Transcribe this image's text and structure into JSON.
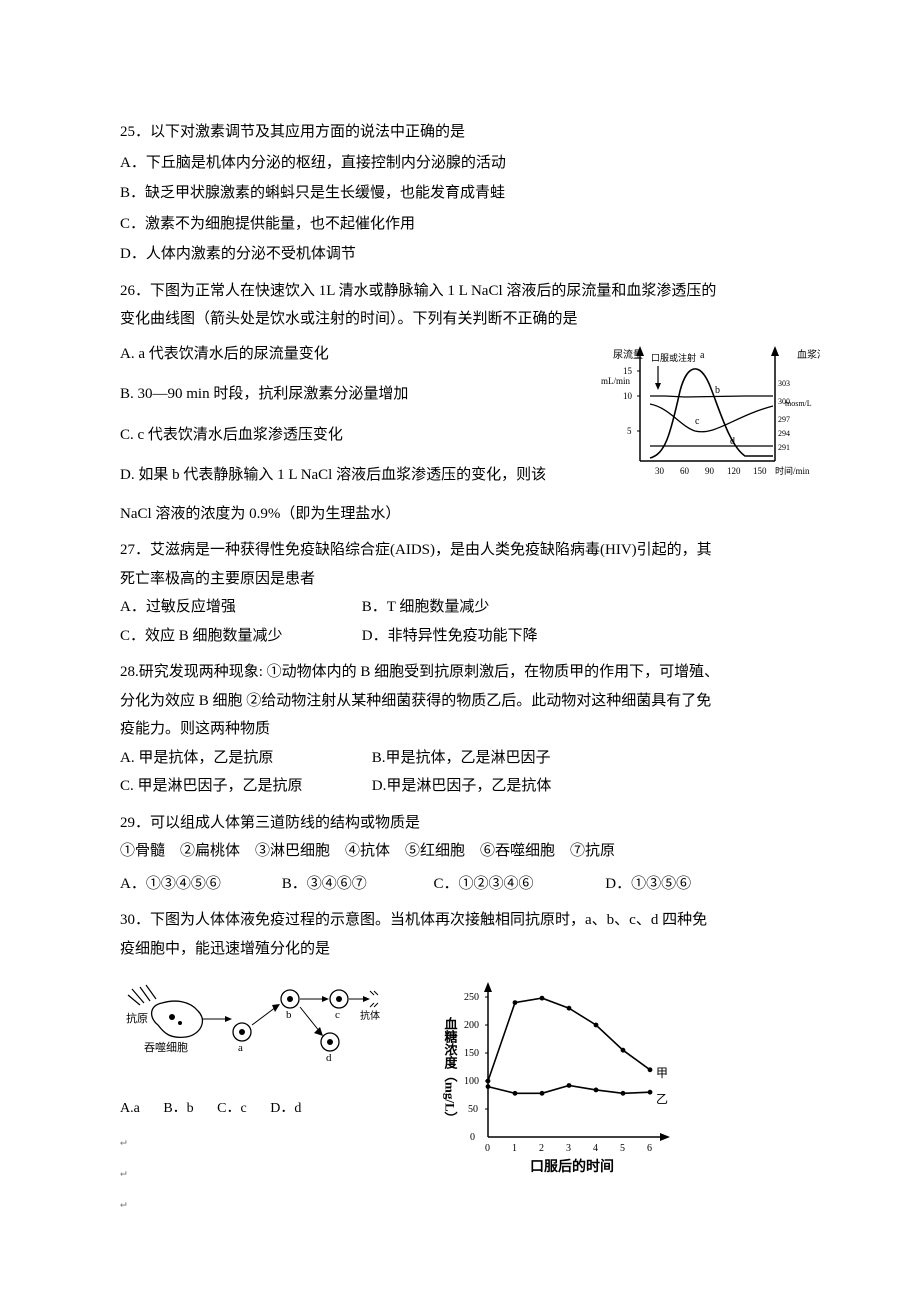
{
  "q25": {
    "stem": "25．以下对激素调节及其应用方面的说法中正确的是",
    "A": "A．下丘脑是机体内分泌的枢纽，直接控制内分泌腺的活动",
    "B": "B．缺乏甲状腺激素的蝌蚪只是生长缓慢，也能发育成青蛙",
    "C": "C．激素不为细胞提供能量，也不起催化作用",
    "D": "D．人体内激素的分泌不受机体调节"
  },
  "q26": {
    "stem1": "26．下图为正常人在快速饮入 1L 清水或静脉输入 1 L NaCl 溶液后的尿流量和血浆渗透压的",
    "stem2": "变化曲线图（箭头处是饮水或注射的时间）。下列有关判断不正确的是",
    "A": "A. a 代表饮清水后的尿流量变化",
    "B": "B. 30—90 min 时段，抗利尿激素分泌量增加",
    "C": "C. c 代表饮清水后血浆渗透压变化",
    "D1": "D. 如果 b 代表静脉输入 1 L NaCl 溶液后血浆渗透压的变化，则该",
    "D2": "NaCl 溶液的浓度为 0.9%（即为生理盐水）",
    "chart": {
      "left_axis_label": "尿流量",
      "left_axis_unit": "mL/min",
      "left_ticks": [
        "15",
        "10",
        "5"
      ],
      "right_axis_label": "血浆渗透压",
      "right_axis_unit": "mosm/L",
      "right_ticks": [
        "303",
        "300",
        "297",
        "294",
        "291"
      ],
      "x_ticks": [
        "30",
        "60",
        "90",
        "120",
        "150"
      ],
      "x_label": "时间/min",
      "inject_label": "口服或注射",
      "series": [
        "a",
        "b",
        "c",
        "d"
      ],
      "strokes": {
        "axis": "#000000",
        "curve": "#000000"
      },
      "background": "#ffffff"
    }
  },
  "q27": {
    "stem1": "27．艾滋病是一种获得性免疫缺陷综合症(AIDS)，是由人类免疫缺陷病毒(HIV)引起的，其",
    "stem2": "死亡率极高的主要原因是患者",
    "A": "A．过敏反应增强",
    "B": "B．T 细胞数量减少",
    "C": "C．效应 B 细胞数量减少",
    "D": "D．非特异性免疫功能下降"
  },
  "q28": {
    "stem1": "28.研究发现两种现象: ①动物体内的 B 细胞受到抗原刺激后，在物质甲的作用下，可增殖、",
    "stem2": "分化为效应 B 细胞  ②给动物注射从某种细菌获得的物质乙后。此动物对这种细菌具有了免",
    "stem3": "疫能力。则这两种物质",
    "A": "A. 甲是抗体，乙是抗原",
    "B": "B.甲是抗体，乙是淋巴因子",
    "C": "C. 甲是淋巴因子，乙是抗原",
    "D": "D.甲是淋巴因子，乙是抗体"
  },
  "q29": {
    "stem": "29．可以组成人体第三道防线的结构或物质是",
    "items": "①骨髓　②扁桃体　③淋巴细胞　④抗体　⑤红细胞　⑥吞噬细胞　⑦抗原",
    "A": "A．①③④⑤⑥",
    "B": "B．③④⑥⑦",
    "C": "C．①②③④⑥",
    "D": "D．①③⑤⑥"
  },
  "q30": {
    "stem1": "30．下图为人体体液免疫过程的示意图。当机体再次接触相同抗原时，a、b、c、d 四种免",
    "stem2": "疫细胞中，能迅速增殖分化的是",
    "opts": {
      "A": "A.a",
      "B": "B．b",
      "C": "C．c",
      "D": "D．d"
    },
    "leftFig": {
      "labels": {
        "antigen": "抗原",
        "phagocyte": "吞噬细胞",
        "antibody": "抗体",
        "a": "a",
        "b": "b",
        "c": "c",
        "d": "d"
      },
      "stroke": "#000000"
    }
  },
  "fig31": {
    "y_label": "血糖浓度（mg/L）",
    "x_label": "口服后的时间",
    "y_ticks": [
      "0",
      "50",
      "100",
      "150",
      "200",
      "250"
    ],
    "x_ticks": [
      "0",
      "1",
      "2",
      "3",
      "4",
      "5",
      "6"
    ],
    "series": {
      "top": "甲",
      "bottom": "乙"
    },
    "top_points": [
      [
        0,
        100
      ],
      [
        1,
        240
      ],
      [
        2,
        248
      ],
      [
        3,
        230
      ],
      [
        4,
        200
      ],
      [
        5,
        155
      ],
      [
        6,
        120
      ]
    ],
    "bottom_points": [
      [
        0,
        90
      ],
      [
        1,
        78
      ],
      [
        2,
        78
      ],
      [
        3,
        92
      ],
      [
        4,
        84
      ],
      [
        5,
        78
      ],
      [
        6,
        80
      ]
    ],
    "stroke": "#000000",
    "background": "#ffffff"
  },
  "ret_mark": "↵"
}
